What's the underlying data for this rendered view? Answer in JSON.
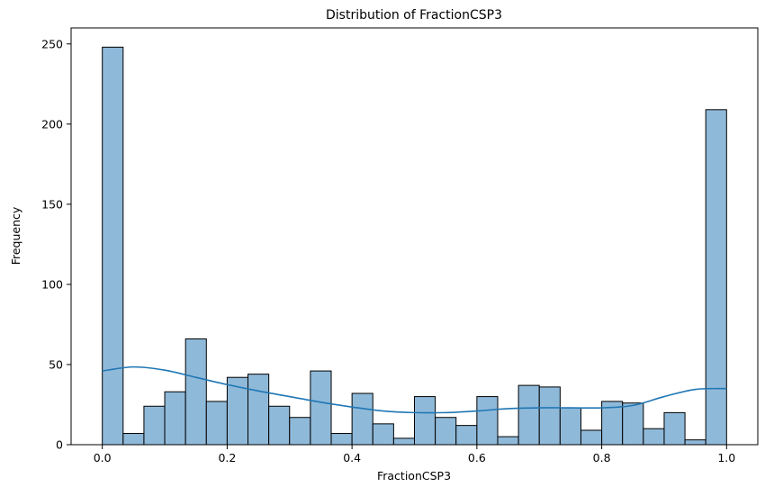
{
  "chart_data": {
    "type": "bar",
    "title": "Distribution of FractionCSP3",
    "xlabel": "FractionCSP3",
    "ylabel": "Frequency",
    "xlim": [
      -0.05,
      1.05
    ],
    "ylim": [
      0,
      260
    ],
    "bin_width": 0.0333,
    "bins_start": [
      0.0,
      0.0333,
      0.0667,
      0.1,
      0.1333,
      0.1667,
      0.2,
      0.2333,
      0.2667,
      0.3,
      0.3333,
      0.3667,
      0.4,
      0.4333,
      0.4667,
      0.5,
      0.5333,
      0.5667,
      0.6,
      0.6333,
      0.6667,
      0.7,
      0.7333,
      0.7667,
      0.8,
      0.8333,
      0.8667,
      0.9,
      0.9333,
      0.9667
    ],
    "values": [
      248,
      7,
      24,
      33,
      66,
      27,
      42,
      44,
      24,
      17,
      46,
      7,
      32,
      13,
      4,
      30,
      17,
      12,
      30,
      5,
      37,
      36,
      23,
      9,
      27,
      26,
      10,
      20,
      3,
      209
    ],
    "kde": {
      "x": [
        0.0,
        0.05,
        0.1,
        0.15,
        0.2,
        0.25,
        0.3,
        0.35,
        0.4,
        0.45,
        0.5,
        0.55,
        0.6,
        0.65,
        0.7,
        0.75,
        0.8,
        0.85,
        0.9,
        0.95,
        1.0
      ],
      "y": [
        46,
        48.5,
        46.5,
        42,
        37.5,
        33.5,
        30,
        26.5,
        23.5,
        21,
        20,
        20,
        21,
        22.5,
        23,
        23,
        23,
        24.5,
        30,
        34.5,
        35
      ]
    },
    "x_ticks": [
      "0.0",
      "0.2",
      "0.4",
      "0.6",
      "0.8",
      "1.0"
    ],
    "y_ticks": [
      "0",
      "50",
      "100",
      "150",
      "200",
      "250"
    ],
    "colors": {
      "bar_fill": "#8fb9d9",
      "bar_edge": "#000000",
      "kde_line": "#1f77b4"
    },
    "grid": false
  }
}
